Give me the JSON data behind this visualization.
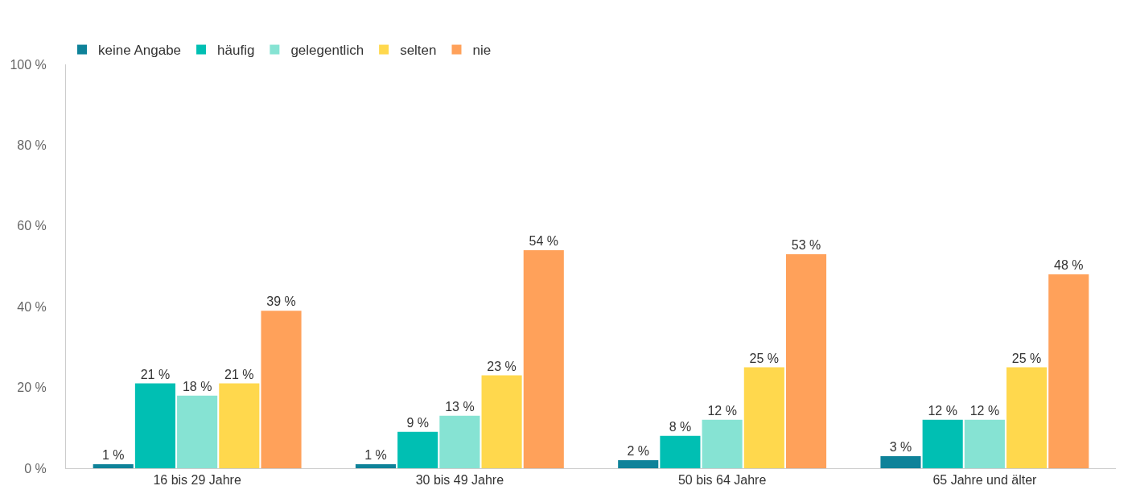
{
  "chart_data": {
    "type": "bar",
    "categories": [
      "16 bis 29 Jahre",
      "30 bis 49 Jahre",
      "50 bis 64 Jahre",
      "65 Jahre und älter"
    ],
    "series": [
      {
        "name": "keine Angabe",
        "color": "#0e8299",
        "values": [
          1,
          1,
          2,
          3
        ],
        "value_labels": [
          "1 %",
          "1 %",
          "2 %",
          "3 %"
        ]
      },
      {
        "name": "häufig",
        "color": "#00bfb3",
        "values": [
          21,
          9,
          8,
          12
        ],
        "value_labels": [
          "21 %",
          "9 %",
          "8 %",
          "12 %"
        ]
      },
      {
        "name": "gelegentlich",
        "color": "#86e3d3",
        "values": [
          18,
          13,
          12,
          12
        ],
        "value_labels": [
          "18 %",
          "13 %",
          "12 %",
          "12 %"
        ]
      },
      {
        "name": "selten",
        "color": "#ffd84d",
        "values": [
          21,
          23,
          25,
          25
        ],
        "value_labels": [
          "21 %",
          "23 %",
          "25 %",
          "25 %"
        ]
      },
      {
        "name": "nie",
        "color": "#ffa15a",
        "values": [
          39,
          54,
          53,
          48
        ],
        "value_labels": [
          "39 %",
          "54 %",
          "53 %",
          "48 %"
        ]
      }
    ],
    "ylim": [
      0,
      100
    ],
    "yticks": [
      {
        "value": 0,
        "label": "0 %"
      },
      {
        "value": 20,
        "label": "20 %"
      },
      {
        "value": 40,
        "label": "40 %"
      },
      {
        "value": 60,
        "label": "60 %"
      },
      {
        "value": 80,
        "label": "80 %"
      },
      {
        "value": 100,
        "label": "100 %"
      }
    ],
    "grid": false,
    "legend": "top left"
  }
}
